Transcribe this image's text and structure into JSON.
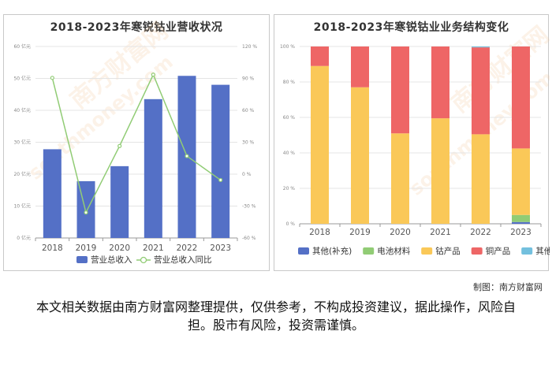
{
  "chart_data": [
    {
      "type": "bar+line",
      "title": "2018-2023年寒锐钴业营收状况",
      "categories": [
        "2018",
        "2019",
        "2020",
        "2021",
        "2022",
        "2023"
      ],
      "series": [
        {
          "name": "营业总收入",
          "type": "bar",
          "axis": "left",
          "unit": "亿元",
          "values": [
            27.8,
            17.8,
            22.5,
            43.5,
            50.8,
            48.0
          ]
        },
        {
          "name": "营业总收入同比",
          "type": "line",
          "axis": "right",
          "unit": "%",
          "values": [
            90.5,
            -36,
            26.5,
            93.5,
            17,
            -5.5
          ]
        }
      ],
      "y_left": {
        "min": 0,
        "max": 60,
        "ticks": [
          "0 亿元",
          "10 亿元",
          "20 亿元",
          "30 亿元",
          "40 亿元",
          "50 亿元",
          "60 亿元"
        ]
      },
      "y_right": {
        "min": -60,
        "max": 120,
        "ticks": [
          "-60 %",
          "-30 %",
          "0 %",
          "30 %",
          "60 %",
          "90 %",
          "120 %"
        ]
      },
      "legend_position": "bottom",
      "colors": {
        "bar": "#5470c6",
        "line": "#91cc75"
      }
    },
    {
      "type": "stacked-bar",
      "title": "2018-2023年寒锐钴业业务结构变化",
      "categories": [
        "2018",
        "2019",
        "2020",
        "2021",
        "2022",
        "2023"
      ],
      "series": [
        {
          "name": "其他(补充)",
          "color": "#5470c6",
          "values": [
            0,
            0,
            0,
            0,
            0,
            1
          ]
        },
        {
          "name": "电池材料",
          "color": "#91cc75",
          "values": [
            0,
            0,
            0,
            0,
            0,
            4
          ]
        },
        {
          "name": "钴产品",
          "color": "#fac858",
          "values": [
            89,
            77,
            51,
            59.5,
            50.5,
            37.5
          ]
        },
        {
          "name": "铜产品",
          "color": "#ee6666",
          "values": [
            11,
            23,
            49,
            40.5,
            49,
            57.5
          ]
        },
        {
          "name": "其他",
          "color": "#73c0de",
          "values": [
            0,
            0,
            0,
            0,
            0.5,
            0
          ]
        }
      ],
      "y_ticks": [
        "0 %",
        "20 %",
        "40 %",
        "60 %",
        "80 %",
        "100 %"
      ],
      "ylim": [
        0,
        100
      ],
      "legend_position": "bottom"
    }
  ],
  "watermark": {
    "brand": "南方财富网",
    "domain": "southmoney.com"
  },
  "footer": {
    "credit": "制图：南方财富网",
    "disclaimer": "本文相关数据由南方财富网整理提供，仅供参考，不构成投资建议，据此操作，风险自担。股市有风险，投资需谨慎。"
  }
}
